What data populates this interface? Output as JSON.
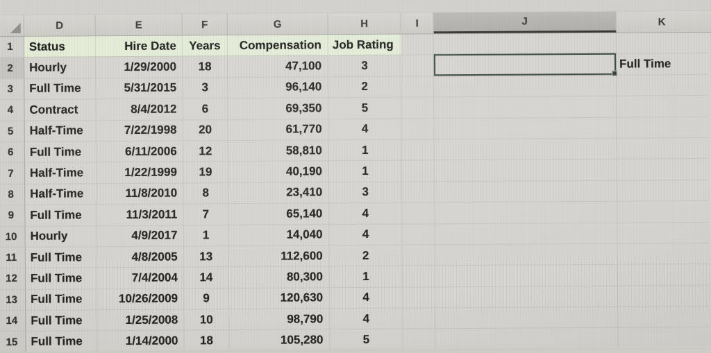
{
  "columns": [
    "D",
    "E",
    "F",
    "G",
    "H",
    "I",
    "J",
    "K"
  ],
  "field_headers": {
    "status": "Status",
    "hire_date": "Hire Date",
    "years": "Years",
    "compensation": "Compensation",
    "job_rating": "Job Rating"
  },
  "rows": [
    {
      "n": "2",
      "status": "Hourly",
      "date": "1/29/2000",
      "years": "18",
      "comp": "47,100",
      "rating": "3"
    },
    {
      "n": "3",
      "status": "Full Time",
      "date": "5/31/2015",
      "years": "3",
      "comp": "96,140",
      "rating": "2"
    },
    {
      "n": "4",
      "status": "Contract",
      "date": "8/4/2012",
      "years": "6",
      "comp": "69,350",
      "rating": "5"
    },
    {
      "n": "5",
      "status": "Half-Time",
      "date": "7/22/1998",
      "years": "20",
      "comp": "61,770",
      "rating": "4"
    },
    {
      "n": "6",
      "status": "Full Time",
      "date": "6/11/2006",
      "years": "12",
      "comp": "58,810",
      "rating": "1"
    },
    {
      "n": "7",
      "status": "Half-Time",
      "date": "1/22/1999",
      "years": "19",
      "comp": "40,190",
      "rating": "1"
    },
    {
      "n": "8",
      "status": "Half-Time",
      "date": "11/8/2010",
      "years": "8",
      "comp": "23,410",
      "rating": "3"
    },
    {
      "n": "9",
      "status": "Full Time",
      "date": "11/3/2011",
      "years": "7",
      "comp": "65,140",
      "rating": "4"
    },
    {
      "n": "10",
      "status": "Hourly",
      "date": "4/9/2017",
      "years": "1",
      "comp": "14,040",
      "rating": "4"
    },
    {
      "n": "11",
      "status": "Full Time",
      "date": "4/8/2005",
      "years": "13",
      "comp": "112,600",
      "rating": "2"
    },
    {
      "n": "12",
      "status": "Full Time",
      "date": "7/4/2004",
      "years": "14",
      "comp": "80,300",
      "rating": "1"
    },
    {
      "n": "13",
      "status": "Full Time",
      "date": "10/26/2009",
      "years": "9",
      "comp": "120,630",
      "rating": "4"
    },
    {
      "n": "14",
      "status": "Full Time",
      "date": "1/25/2008",
      "years": "10",
      "comp": "98,790",
      "rating": "4"
    },
    {
      "n": "15",
      "status": "Full Time",
      "date": "1/14/2000",
      "years": "18",
      "comp": "105,280",
      "rating": "5"
    }
  ],
  "header_row_number": "1",
  "extra_cells": {
    "K2": "Full Time"
  },
  "selection": {
    "cell": "J2",
    "value": "",
    "selected_column": "J",
    "selected_row": "2"
  },
  "colors": {
    "header_fill_green": "#e3ecd7",
    "selection_border": "#3a4a41",
    "header_band": "#d0cec9",
    "selected_header": "#b4b2ae"
  }
}
